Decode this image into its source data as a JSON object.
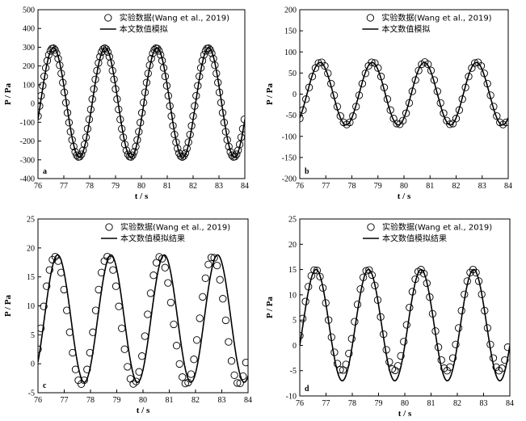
{
  "chart_data": [
    {
      "type": "scatter",
      "panel_label": "a",
      "xlabel": "t / s",
      "ylabel": "P / Pa",
      "xlim": [
        76,
        84
      ],
      "ylim": [
        -400,
        500
      ],
      "xticks": [
        76,
        77,
        78,
        79,
        80,
        81,
        82,
        83,
        84
      ],
      "yticks": [
        -400,
        -300,
        -200,
        -100,
        0,
        100,
        200,
        300,
        400,
        500
      ],
      "legend": {
        "placement": "top-right",
        "entries": [
          "实验数据(Wang et al., 2019)",
          "本文数值模拟"
        ]
      },
      "series": [
        {
          "name": "实验数据(Wang et al., 2019)",
          "style": "open-circle",
          "model": {
            "amplitude": 290,
            "offset": 5,
            "period": 2.0,
            "peak_t": 76.58,
            "t_start": 76.0,
            "t_end": 84.0,
            "step": 0.06
          }
        },
        {
          "name": "本文数值模拟",
          "style": "line",
          "model": {
            "amplitude": 292,
            "offset": 5,
            "period": 2.0,
            "peak_t": 76.6,
            "t_start": 76.0,
            "t_end": 84.0,
            "step": 0.02
          }
        }
      ]
    },
    {
      "type": "scatter",
      "panel_label": "b",
      "xlabel": "t / s",
      "ylabel": "P / Pa",
      "xlim": [
        76,
        84
      ],
      "ylim": [
        -200,
        200
      ],
      "xticks": [
        76,
        77,
        78,
        79,
        80,
        81,
        82,
        83,
        84
      ],
      "yticks": [
        -200,
        -150,
        -100,
        -50,
        0,
        50,
        100,
        150,
        200
      ],
      "legend": {
        "placement": "top-right",
        "entries": [
          "实验数据(Wang et al., 2019)",
          "本文数值模拟"
        ]
      },
      "series": [
        {
          "name": "实验数据(Wang et al., 2019)",
          "style": "open-circle",
          "model": {
            "amplitude": 74,
            "offset": 2,
            "period": 2.0,
            "peak_t": 76.8,
            "t_start": 76.0,
            "t_end": 84.0,
            "step": 0.12
          }
        },
        {
          "name": "本文数值模拟",
          "style": "line",
          "model": {
            "amplitude": 74,
            "offset": 1,
            "period": 2.0,
            "peak_t": 76.78,
            "t_start": 76.0,
            "t_end": 84.0,
            "step": 0.02
          }
        }
      ]
    },
    {
      "type": "scatter",
      "panel_label": "c",
      "xlabel": "t / s",
      "ylabel": "P / Pa",
      "xlim": [
        76,
        84
      ],
      "ylim": [
        -5,
        25
      ],
      "xticks": [
        76,
        77,
        78,
        79,
        80,
        81,
        82,
        83,
        84
      ],
      "yticks": [
        -5,
        0,
        5,
        10,
        15,
        20,
        25
      ],
      "legend": {
        "placement": "top-right",
        "entries": [
          "实验数据(Wang et al., 2019)",
          "本文数值模拟结果"
        ]
      },
      "series": [
        {
          "name": "实验数据(Wang et al., 2019)",
          "style": "open-circle",
          "model": {
            "amplitude": 11,
            "offset": 7.5,
            "period": 2.0,
            "peak_t": 76.65,
            "t_start": 76.0,
            "t_end": 84.0,
            "step": 0.11
          }
        },
        {
          "name": "本文数值模拟结果",
          "style": "line",
          "model": {
            "amplitude": 11,
            "offset": 7.8,
            "period": 2.03,
            "peak_t": 76.75,
            "t_start": 76.0,
            "t_end": 84.0,
            "step": 0.02
          }
        }
      ]
    },
    {
      "type": "scatter",
      "panel_label": "d",
      "xlabel": "t / s",
      "ylabel": "P / Pa",
      "xlim": [
        76,
        84
      ],
      "ylim": [
        -10,
        25
      ],
      "xticks": [
        76,
        77,
        78,
        79,
        80,
        81,
        82,
        83,
        84
      ],
      "yticks": [
        -10,
        -5,
        0,
        5,
        10,
        15,
        20,
        25
      ],
      "legend": {
        "placement": "top-right",
        "entries": [
          "实验数据(Wang et al., 2019)",
          "本文数值模拟结果"
        ]
      },
      "series": [
        {
          "name": "实验数据(Wang et al., 2019)",
          "style": "open-circle",
          "model": {
            "amplitude": 10,
            "offset": 5,
            "period": 2.0,
            "peak_t": 76.6,
            "t_start": 76.0,
            "t_end": 84.0,
            "step": 0.11
          }
        },
        {
          "name": "本文数值模拟结果",
          "style": "line",
          "model": {
            "amplitude": 11,
            "offset": 4,
            "period": 2.0,
            "peak_t": 76.62,
            "t_start": 76.0,
            "t_end": 84.0,
            "step": 0.02
          }
        }
      ]
    }
  ]
}
